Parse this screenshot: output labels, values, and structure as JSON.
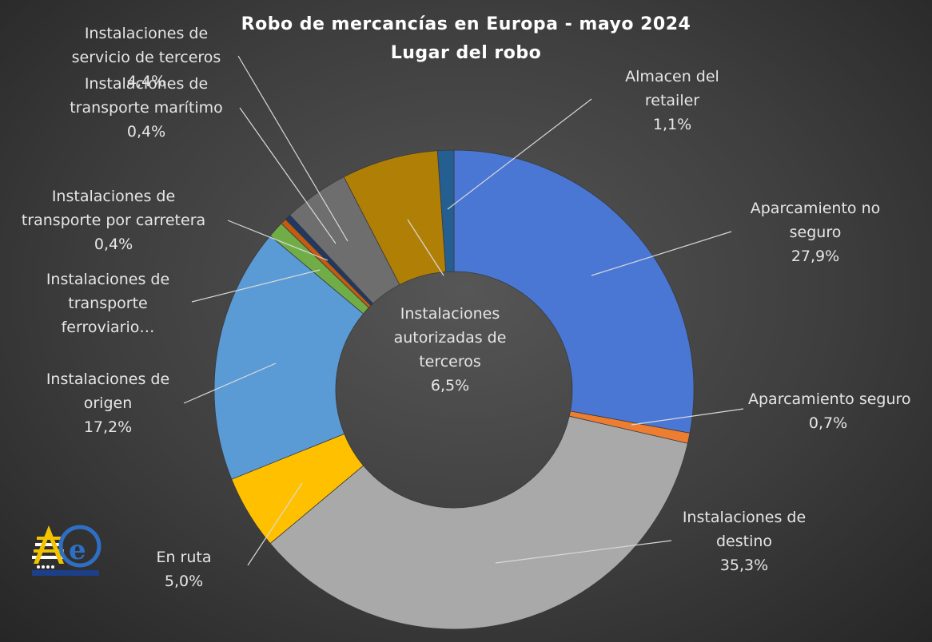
{
  "chart_data": {
    "type": "donut",
    "title": "Robo de mercancías en Europa - mayo 2024",
    "subtitle": "Lugar del robo",
    "unit": "%",
    "slices": [
      {
        "label_lines": [
          "Aparcamiento no",
          "seguro"
        ],
        "value": 27.9,
        "value_label": "27,9%",
        "color": "#4a77d4"
      },
      {
        "label_lines": [
          "Aparcamiento seguro"
        ],
        "value": 0.7,
        "value_label": "0,7%",
        "color": "#ed7d31"
      },
      {
        "label_lines": [
          "Instalaciones de",
          "destino"
        ],
        "value": 35.3,
        "value_label": "35,3%",
        "color": "#a9a9a9"
      },
      {
        "label_lines": [
          "En ruta"
        ],
        "value": 5.0,
        "value_label": "5,0%",
        "color": "#ffc000"
      },
      {
        "label_lines": [
          "Instalaciones de",
          "origen"
        ],
        "value": 17.2,
        "value_label": "17,2%",
        "color": "#5b9bd5"
      },
      {
        "label_lines": [
          "Instalaciones de",
          "transporte",
          "ferroviario…"
        ],
        "value": 1.1,
        "value_label": "",
        "color": "#70ad47"
      },
      {
        "label_lines": [
          "Instalaciones de",
          "transporte por carretera"
        ],
        "value": 0.4,
        "value_label": "0,4%",
        "color": "#c55a11"
      },
      {
        "label_lines": [
          "Instalaciones de",
          "transporte marítimo"
        ],
        "value": 0.4,
        "value_label": "0,4%",
        "color": "#1f3864"
      },
      {
        "label_lines": [
          "Instalaciones de",
          "servicio de terceros"
        ],
        "value": 4.4,
        "value_label": "4,4%",
        "color": "#6e6e6e"
      },
      {
        "label_lines": [
          "Instalaciones",
          "autorizadas de",
          "terceros"
        ],
        "value": 6.5,
        "value_label": "6,5%",
        "color": "#b07f06"
      },
      {
        "label_lines": [
          "Almacen del",
          "retailer"
        ],
        "value": 1.1,
        "value_label": "1,1%",
        "color": "#255e91"
      }
    ]
  },
  "logo": {
    "text": "AeC"
  }
}
